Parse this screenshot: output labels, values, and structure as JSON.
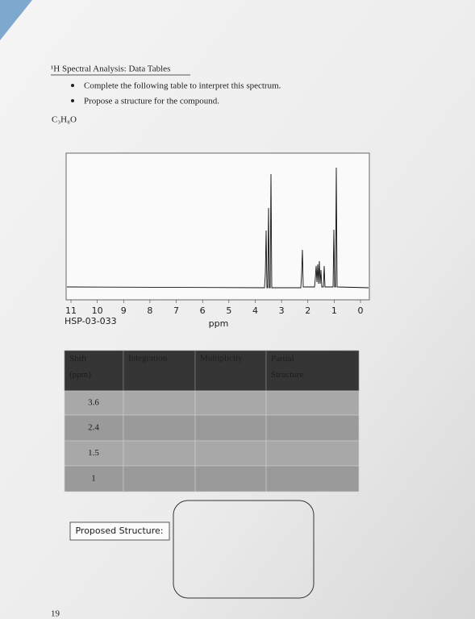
{
  "header": {
    "title": "¹H Spectral Analysis: Data Tables",
    "bullets": [
      "Complete the following table to interpret this spectrum.",
      "Propose a structure for the compound."
    ],
    "formula": "C₃H₈O"
  },
  "spectrum": {
    "ticks": [
      11,
      10,
      9,
      8,
      7,
      6,
      5,
      4,
      3,
      2,
      1,
      0
    ],
    "code": "HSP-03-033",
    "axis_label": "ppm"
  },
  "table": {
    "header": [
      "Shift (ppm)",
      "Integration",
      "Multiplicity",
      "Partial Structure"
    ],
    "shifts": [
      3.6,
      2.4,
      1.5,
      1
    ]
  },
  "proposed_label": "Proposed Structure:",
  "page_number": "19"
}
